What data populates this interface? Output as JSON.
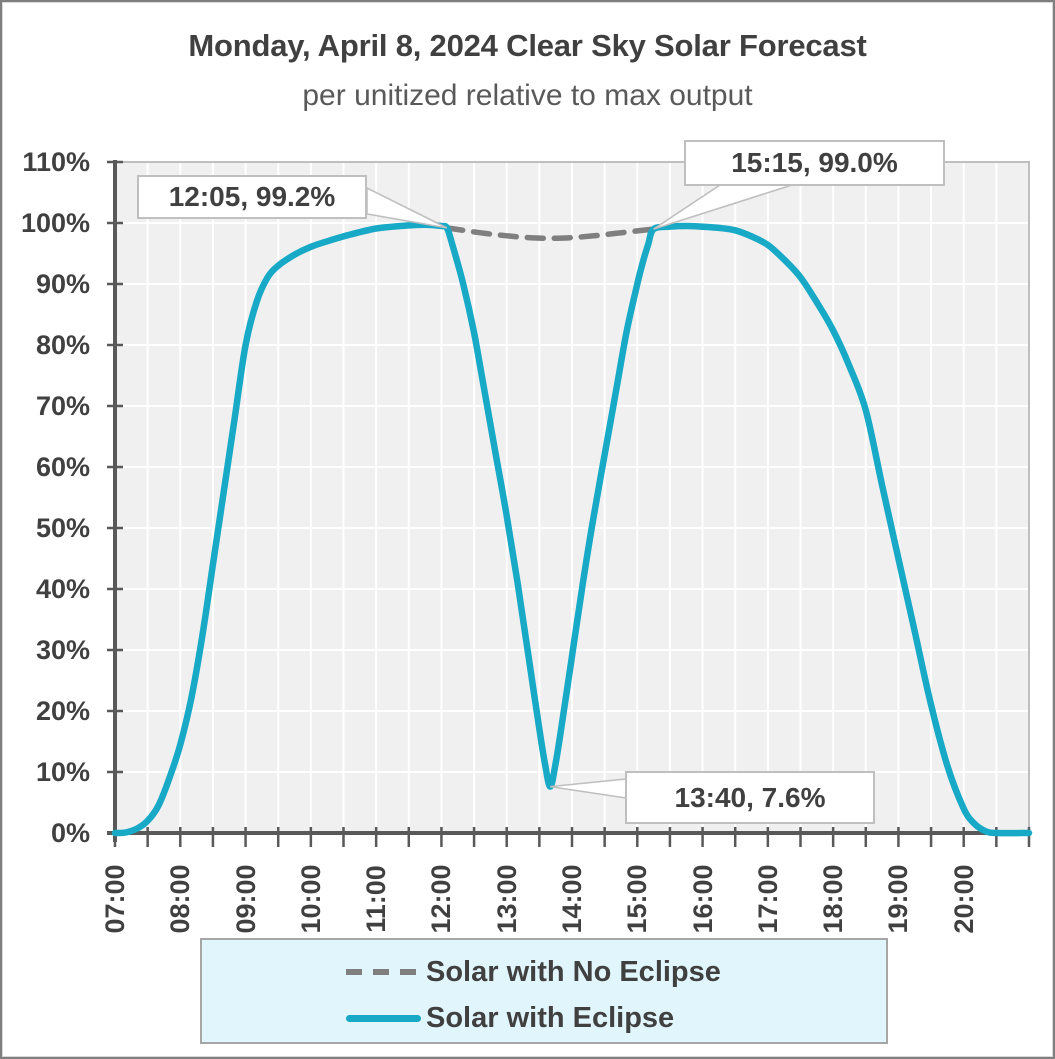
{
  "title": "Monday, April 8, 2024 Clear Sky Solar Forecast",
  "subtitle": "per unitized relative to max output",
  "colors": {
    "background": "#FFFFFF",
    "frame_border": "#7F7F7F",
    "plot_background": "#F0F0F0",
    "gridline": "#FFFFFF",
    "plot_border": "#BFBFBF",
    "axis": "#595959",
    "text_dark": "#404040",
    "text_medium": "#595959",
    "callout_background": "#FFFFFF",
    "callout_border": "#BFBFBF",
    "legend_background": "#E1F5FC",
    "legend_border": "#A6A6A6",
    "series_eclipse": "#17A9C6",
    "series_no_eclipse": "#7F7F7F"
  },
  "chart_data": {
    "type": "line",
    "title": "Monday, April 8, 2024 Clear Sky Solar Forecast",
    "subtitle": "per unitized relative to max output",
    "xlabel": "",
    "ylabel": "",
    "x_axis": {
      "start": "07:00",
      "end": "21:00",
      "tick_interval_minutes": 30,
      "labels": [
        "07:00",
        "08:00",
        "09:00",
        "10:00",
        "11:00",
        "12:00",
        "13:00",
        "14:00",
        "15:00",
        "16:00",
        "17:00",
        "18:00",
        "19:00",
        "20:00"
      ]
    },
    "y_axis": {
      "min": 0,
      "max": 110,
      "unit": "%",
      "labels": [
        "0%",
        "10%",
        "20%",
        "30%",
        "40%",
        "50%",
        "60%",
        "70%",
        "80%",
        "90%",
        "100%",
        "110%"
      ],
      "grid": true
    },
    "series": [
      {
        "name": "Solar with No Eclipse",
        "style": "dashed",
        "color": "#7F7F7F",
        "points": [
          [
            "12:05",
            99.2
          ],
          [
            "12:20",
            98.8
          ],
          [
            "12:40",
            98.3
          ],
          [
            "13:00",
            97.9
          ],
          [
            "13:20",
            97.6
          ],
          [
            "13:40",
            97.5
          ],
          [
            "14:00",
            97.6
          ],
          [
            "14:20",
            97.9
          ],
          [
            "14:40",
            98.3
          ],
          [
            "15:00",
            98.7
          ],
          [
            "15:15",
            99.0
          ]
        ]
      },
      {
        "name": "Solar with Eclipse",
        "style": "solid",
        "color": "#17A9C6",
        "points": [
          [
            "07:00",
            0
          ],
          [
            "07:10",
            0.1
          ],
          [
            "07:20",
            0.7
          ],
          [
            "07:30",
            2
          ],
          [
            "07:40",
            4.5
          ],
          [
            "07:50",
            9
          ],
          [
            "08:00",
            14.5
          ],
          [
            "08:10",
            22
          ],
          [
            "08:20",
            32
          ],
          [
            "08:30",
            44
          ],
          [
            "08:40",
            56
          ],
          [
            "08:50",
            68
          ],
          [
            "09:00",
            80
          ],
          [
            "09:10",
            87
          ],
          [
            "09:20",
            91
          ],
          [
            "09:30",
            93
          ],
          [
            "09:45",
            94.8
          ],
          [
            "10:00",
            96.1
          ],
          [
            "10:15",
            97
          ],
          [
            "10:30",
            97.8
          ],
          [
            "10:45",
            98.5
          ],
          [
            "11:00",
            99.1
          ],
          [
            "11:15",
            99.4
          ],
          [
            "11:30",
            99.6
          ],
          [
            "11:45",
            99.7
          ],
          [
            "12:00",
            99.5
          ],
          [
            "12:05",
            99.2
          ],
          [
            "12:10",
            96.5
          ],
          [
            "12:20",
            90
          ],
          [
            "12:30",
            82
          ],
          [
            "12:40",
            72
          ],
          [
            "12:50",
            62
          ],
          [
            "13:00",
            52
          ],
          [
            "13:10",
            41
          ],
          [
            "13:20",
            29
          ],
          [
            "13:30",
            17
          ],
          [
            "13:35",
            11.5
          ],
          [
            "13:40",
            7.6
          ],
          [
            "13:45",
            11.5
          ],
          [
            "13:50",
            17
          ],
          [
            "14:00",
            29
          ],
          [
            "14:10",
            41
          ],
          [
            "14:20",
            52
          ],
          [
            "14:30",
            62
          ],
          [
            "14:40",
            72
          ],
          [
            "14:50",
            82
          ],
          [
            "15:00",
            90
          ],
          [
            "15:05",
            93.5
          ],
          [
            "15:10",
            96.5
          ],
          [
            "15:15",
            99
          ],
          [
            "15:30",
            99.4
          ],
          [
            "15:45",
            99.5
          ],
          [
            "16:00",
            99.4
          ],
          [
            "16:15",
            99.2
          ],
          [
            "16:30",
            98.8
          ],
          [
            "16:45",
            97.8
          ],
          [
            "17:00",
            96.4
          ],
          [
            "17:15",
            94
          ],
          [
            "17:30",
            91.1
          ],
          [
            "17:45",
            87
          ],
          [
            "18:00",
            82.4
          ],
          [
            "18:15",
            76.5
          ],
          [
            "18:30",
            69.3
          ],
          [
            "18:45",
            57
          ],
          [
            "19:00",
            45
          ],
          [
            "19:15",
            33
          ],
          [
            "19:30",
            21
          ],
          [
            "19:45",
            11
          ],
          [
            "20:00",
            4
          ],
          [
            "20:10",
            1.5
          ],
          [
            "20:20",
            0.3
          ],
          [
            "20:30",
            0
          ],
          [
            "21:00",
            0
          ]
        ]
      }
    ],
    "annotations": [
      {
        "label": "12:05, 99.2%",
        "time": "12:05",
        "value": 99.2
      },
      {
        "label": "15:15, 99.0%",
        "time": "15:15",
        "value": 99.0
      },
      {
        "label": "13:40, 7.6%",
        "time": "13:40",
        "value": 7.6
      }
    ],
    "legend": {
      "position": "bottom",
      "entries": [
        {
          "label": "Solar with No Eclipse",
          "style": "dashed",
          "color": "#7F7F7F"
        },
        {
          "label": "Solar with Eclipse",
          "style": "solid",
          "color": "#17A9C6"
        }
      ]
    }
  }
}
